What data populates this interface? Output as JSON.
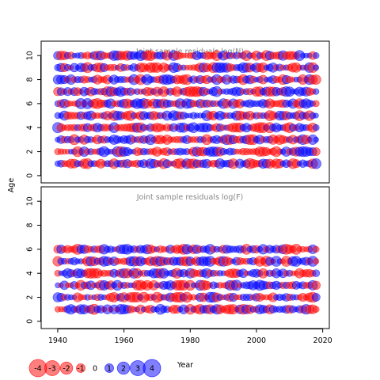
{
  "chart_data": [
    {
      "type": "scatter",
      "subtype": "bubble",
      "title": "Joint sample residuals log(N)",
      "xlabel": "Year",
      "ylabel": "Age",
      "xlim": [
        1935,
        2022
      ],
      "ylim": [
        -0.6,
        11.2
      ],
      "xticks": [
        1940,
        1960,
        1980,
        2000,
        2020
      ],
      "yticks": [
        0,
        2,
        4,
        6,
        8,
        10
      ],
      "x_range": [
        1940,
        2018
      ],
      "ages": [
        1,
        2,
        3,
        4,
        5,
        6,
        7,
        8,
        9,
        10
      ],
      "positive_color": "#0000ff",
      "negative_color": "#ff0000",
      "marker_alpha": 0.5,
      "grid": false
    },
    {
      "type": "scatter",
      "subtype": "bubble",
      "title": "Joint sample residuals log(F)",
      "xlabel": "Year",
      "ylabel": "Age",
      "xlim": [
        1935,
        2022
      ],
      "ylim": [
        -0.6,
        11.2
      ],
      "xticks": [
        1940,
        1960,
        1980,
        2000,
        2020
      ],
      "yticks": [
        0,
        2,
        4,
        6,
        8,
        10
      ],
      "x_range": [
        1940,
        2018
      ],
      "ages": [
        1,
        2,
        3,
        4,
        5,
        6
      ],
      "positive_color": "#0000ff",
      "negative_color": "#ff0000",
      "marker_alpha": 0.5,
      "grid": false
    }
  ],
  "legend": {
    "position": "bottom-left",
    "values": [
      -4,
      -3,
      -2,
      -1,
      0,
      1,
      2,
      3,
      4
    ],
    "labels": [
      "-4",
      "-3",
      "-2",
      "-1",
      "0",
      "1",
      "2",
      "3",
      "4"
    ]
  },
  "axis_labels": {
    "y": "Age",
    "x": "Year"
  }
}
